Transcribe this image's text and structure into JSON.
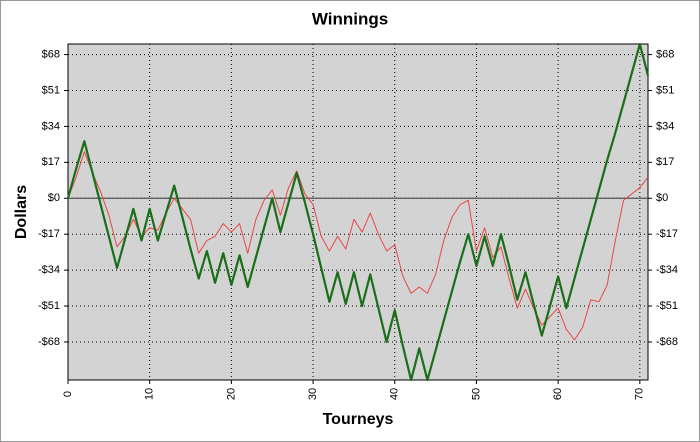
{
  "chart_data": {
    "type": "line",
    "title": "Winnings",
    "x_label": "Tourneys",
    "y_label": "Dollars",
    "x": [
      0,
      1,
      2,
      3,
      4,
      5,
      6,
      7,
      8,
      9,
      10,
      11,
      12,
      13,
      14,
      15,
      16,
      17,
      18,
      19,
      20,
      21,
      22,
      23,
      24,
      25,
      26,
      27,
      28,
      29,
      30,
      31,
      32,
      33,
      34,
      35,
      36,
      37,
      38,
      39,
      40,
      41,
      42,
      43,
      44,
      45,
      46,
      47,
      48,
      49,
      50,
      51,
      52,
      53,
      54,
      55,
      56,
      57,
      58,
      59,
      60,
      61,
      62,
      63,
      64,
      65,
      66,
      67,
      68,
      69,
      70,
      71
    ],
    "series": [
      {
        "color": "#e84848",
        "width": 1,
        "values": [
          0,
          10,
          22,
          12,
          3,
          -8,
          -23,
          -18,
          -10,
          -18,
          -14,
          -15,
          -7,
          0,
          -5,
          -10,
          -26,
          -20,
          -18,
          -12,
          -16,
          -12,
          -26,
          -10,
          -1,
          4,
          -8,
          5,
          13,
          2,
          -3,
          -18,
          -25,
          -18,
          -24,
          -10,
          -16,
          -7,
          -17,
          -25,
          -22,
          -37,
          -45,
          -42,
          -45,
          -36,
          -20,
          -9,
          -3,
          -1,
          -25,
          -14,
          -28,
          -23,
          -38,
          -52,
          -43,
          -52,
          -60,
          -56,
          -52,
          -62,
          -67,
          -61,
          -48,
          -49,
          -41,
          -20,
          -1,
          2,
          5,
          10
        ]
      },
      {
        "color": "#1a6e1a",
        "width": 2.2,
        "values": [
          0,
          14,
          27,
          12,
          -3,
          -18,
          -33,
          -19,
          -5,
          -20,
          -5,
          -20,
          -7,
          6,
          -9,
          -24,
          -38,
          -25,
          -40,
          -26,
          -41,
          -27,
          -42,
          -28,
          -14,
          0,
          -16,
          -2,
          12,
          -2,
          -17,
          -33,
          -49,
          -35,
          -50,
          -35,
          -51,
          -36,
          -52,
          -68,
          -53,
          -70,
          -86,
          -71,
          -86,
          -72,
          -58,
          -44,
          -30,
          -17,
          -32,
          -18,
          -32,
          -17,
          -32,
          -48,
          -35,
          -50,
          -65,
          -51,
          -37,
          -52,
          -38,
          -24,
          -10,
          4,
          18,
          31,
          45,
          59,
          73,
          58
        ]
      }
    ],
    "xlim": [
      0,
      71
    ],
    "xticks": [
      0,
      10,
      20,
      30,
      40,
      50,
      60,
      70
    ],
    "ylim": [
      -86,
      73
    ],
    "yticks": [
      {
        "value": -68,
        "label": "-$68"
      },
      {
        "value": -51,
        "label": "-$51"
      },
      {
        "value": -34,
        "label": "-$34"
      },
      {
        "value": -17,
        "label": "-$17"
      },
      {
        "value": 0,
        "label": "$0"
      },
      {
        "value": 17,
        "label": "$17"
      },
      {
        "value": 34,
        "label": "$34"
      },
      {
        "value": 51,
        "label": "$51"
      },
      {
        "value": 68,
        "label": "$68"
      }
    ],
    "grid": true
  }
}
